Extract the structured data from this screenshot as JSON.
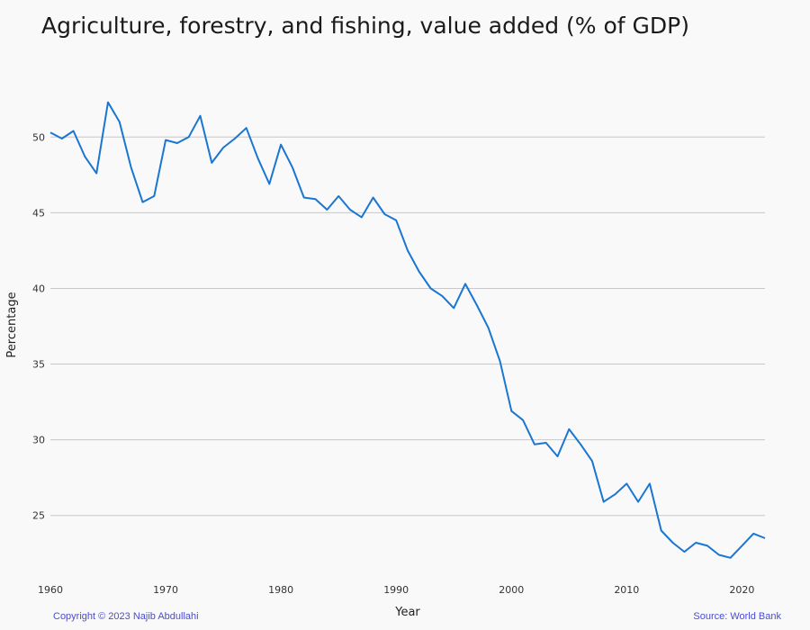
{
  "chart_data": {
    "type": "line",
    "title": "Agriculture, forestry, and fishing, value added (% of GDP)",
    "xlabel": "Year",
    "ylabel": "Percentage",
    "xlim": [
      1960,
      2022
    ],
    "ylim": [
      21,
      54
    ],
    "x_ticks": [
      1960,
      1970,
      1980,
      1990,
      2000,
      2010,
      2020
    ],
    "y_ticks": [
      25,
      30,
      35,
      40,
      45,
      50
    ],
    "grid": "horizontal",
    "line_color": "#1976d2",
    "series": [
      {
        "x": [
          1960,
          1961,
          1962,
          1963,
          1964,
          1965,
          1966,
          1967,
          1968,
          1969,
          1970,
          1971,
          1972,
          1973,
          1974,
          1975,
          1976,
          1977,
          1978,
          1979,
          1980,
          1981,
          1982,
          1983,
          1984,
          1985,
          1986,
          1987,
          1988,
          1989,
          1990,
          1991,
          1992,
          1993,
          1994,
          1995,
          1996,
          1997,
          1998,
          1999,
          2000,
          2001,
          2002,
          2003,
          2004,
          2005,
          2006,
          2007,
          2008,
          2009,
          2010,
          2011,
          2012,
          2013,
          2014,
          2015,
          2016,
          2017,
          2018,
          2019,
          2020,
          2021,
          2022
        ],
        "values": [
          50.3,
          49.9,
          50.4,
          48.7,
          47.6,
          52.3,
          51.0,
          48.0,
          45.7,
          46.1,
          49.8,
          49.6,
          50.0,
          51.4,
          48.3,
          49.3,
          49.9,
          50.6,
          48.6,
          46.9,
          49.5,
          48.0,
          46.0,
          45.9,
          45.2,
          46.1,
          45.2,
          44.7,
          46.0,
          44.9,
          44.5,
          42.5,
          41.1,
          40.0,
          39.5,
          38.7,
          40.3,
          38.9,
          37.4,
          35.2,
          31.9,
          31.3,
          29.7,
          29.8,
          28.9,
          30.7,
          29.7,
          28.6,
          25.9,
          26.4,
          27.1,
          25.9,
          27.1,
          24.0,
          23.2,
          22.6,
          23.2,
          23.0,
          22.4,
          22.2,
          23.0,
          23.8,
          23.5
        ]
      }
    ]
  },
  "footer": {
    "copyright": "Copyright © 2023 Najib Abdullahi",
    "source": "Source: World Bank"
  }
}
